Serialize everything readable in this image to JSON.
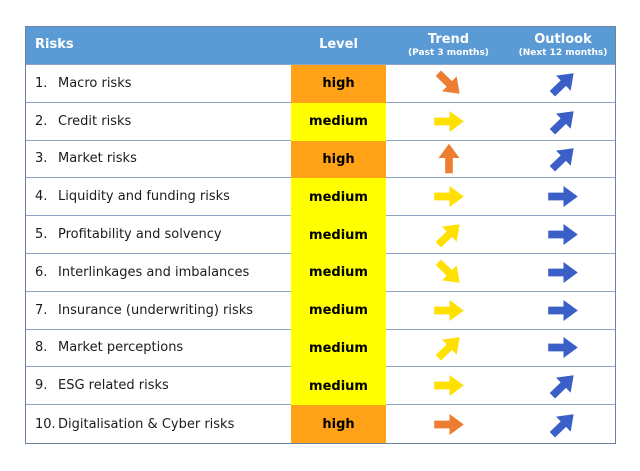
{
  "colors": {
    "page_bg": "#ffffff",
    "header_bg": "#5B9BD5",
    "header_text": "#FFFFFF",
    "level_high_bg": "#FFA217",
    "level_medium_bg": "#FFFF00",
    "level_text": "#000000",
    "arrow_orange": "#ED7D31",
    "arrow_yellow": "#FFE000",
    "arrow_blue": "#3A5FC6",
    "row_line": "#8FA3C4",
    "outer_border": "#6B82A3",
    "risk_text": "#1C1C1C"
  },
  "header": {
    "risks": "Risks",
    "level": "Level",
    "trend": "Trend",
    "trend_sub": "(Past 3 months)",
    "outlook": "Outlook",
    "outlook_sub": "(Next 12 months)"
  },
  "rows": [
    {
      "number": "1.",
      "name": "Macro risks",
      "level": "high",
      "trend": {
        "direction": "down-right",
        "color": "orange"
      },
      "outlook": {
        "direction": "up-right",
        "color": "blue"
      }
    },
    {
      "number": "2.",
      "name": "Credit risks",
      "level": "medium",
      "trend": {
        "direction": "right",
        "color": "yellow"
      },
      "outlook": {
        "direction": "up-right",
        "color": "blue"
      }
    },
    {
      "number": "3.",
      "name": "Market risks",
      "level": "high",
      "trend": {
        "direction": "up",
        "color": "orange"
      },
      "outlook": {
        "direction": "up-right",
        "color": "blue"
      }
    },
    {
      "number": "4.",
      "name": "Liquidity and funding risks",
      "level": "medium",
      "trend": {
        "direction": "right",
        "color": "yellow"
      },
      "outlook": {
        "direction": "right",
        "color": "blue"
      }
    },
    {
      "number": "5.",
      "name": "Profitability and solvency",
      "level": "medium",
      "trend": {
        "direction": "up-right",
        "color": "yellow"
      },
      "outlook": {
        "direction": "right",
        "color": "blue"
      }
    },
    {
      "number": "6.",
      "name": "Interlinkages and imbalances",
      "level": "medium",
      "trend": {
        "direction": "down-right",
        "color": "yellow"
      },
      "outlook": {
        "direction": "right",
        "color": "blue"
      }
    },
    {
      "number": "7.",
      "name": "Insurance (underwriting) risks",
      "level": "medium",
      "trend": {
        "direction": "right",
        "color": "yellow"
      },
      "outlook": {
        "direction": "right",
        "color": "blue"
      }
    },
    {
      "number": "8.",
      "name": "Market perceptions",
      "level": "medium",
      "trend": {
        "direction": "up-right",
        "color": "yellow"
      },
      "outlook": {
        "direction": "right",
        "color": "blue"
      }
    },
    {
      "number": "9.",
      "name": "ESG related risks",
      "level": "medium",
      "trend": {
        "direction": "right",
        "color": "yellow"
      },
      "outlook": {
        "direction": "up-right",
        "color": "blue"
      }
    },
    {
      "number": "10.",
      "name": "Digitalisation & Cyber risks",
      "level": "high",
      "trend": {
        "direction": "right",
        "color": "orange"
      },
      "outlook": {
        "direction": "up-right",
        "color": "blue"
      }
    }
  ],
  "chart_data": {
    "type": "table",
    "title": "Risk dashboard",
    "columns": [
      "Risks",
      "Level",
      "Trend (Past 3 months)",
      "Outlook (Next 12 months)"
    ],
    "rows": [
      [
        "1. Macro risks",
        "high",
        "down-right",
        "up-right"
      ],
      [
        "2. Credit risks",
        "medium",
        "right",
        "up-right"
      ],
      [
        "3. Market risks",
        "high",
        "up",
        "up-right"
      ],
      [
        "4. Liquidity and funding risks",
        "medium",
        "right",
        "right"
      ],
      [
        "5. Profitability and solvency",
        "medium",
        "up-right",
        "right"
      ],
      [
        "6. Interlinkages and imbalances",
        "medium",
        "down-right",
        "right"
      ],
      [
        "7. Insurance (underwriting) risks",
        "medium",
        "right",
        "right"
      ],
      [
        "8. Market perceptions",
        "medium",
        "up-right",
        "right"
      ],
      [
        "9. ESG related risks",
        "medium",
        "right",
        "up-right"
      ],
      [
        "10. Digitalisation & Cyber risks",
        "high",
        "right",
        "up-right"
      ]
    ],
    "legend": {
      "level_scale": [
        "medium (yellow)",
        "high (orange)"
      ],
      "arrow_directions": [
        "up",
        "up-right",
        "right",
        "down-right"
      ]
    }
  }
}
